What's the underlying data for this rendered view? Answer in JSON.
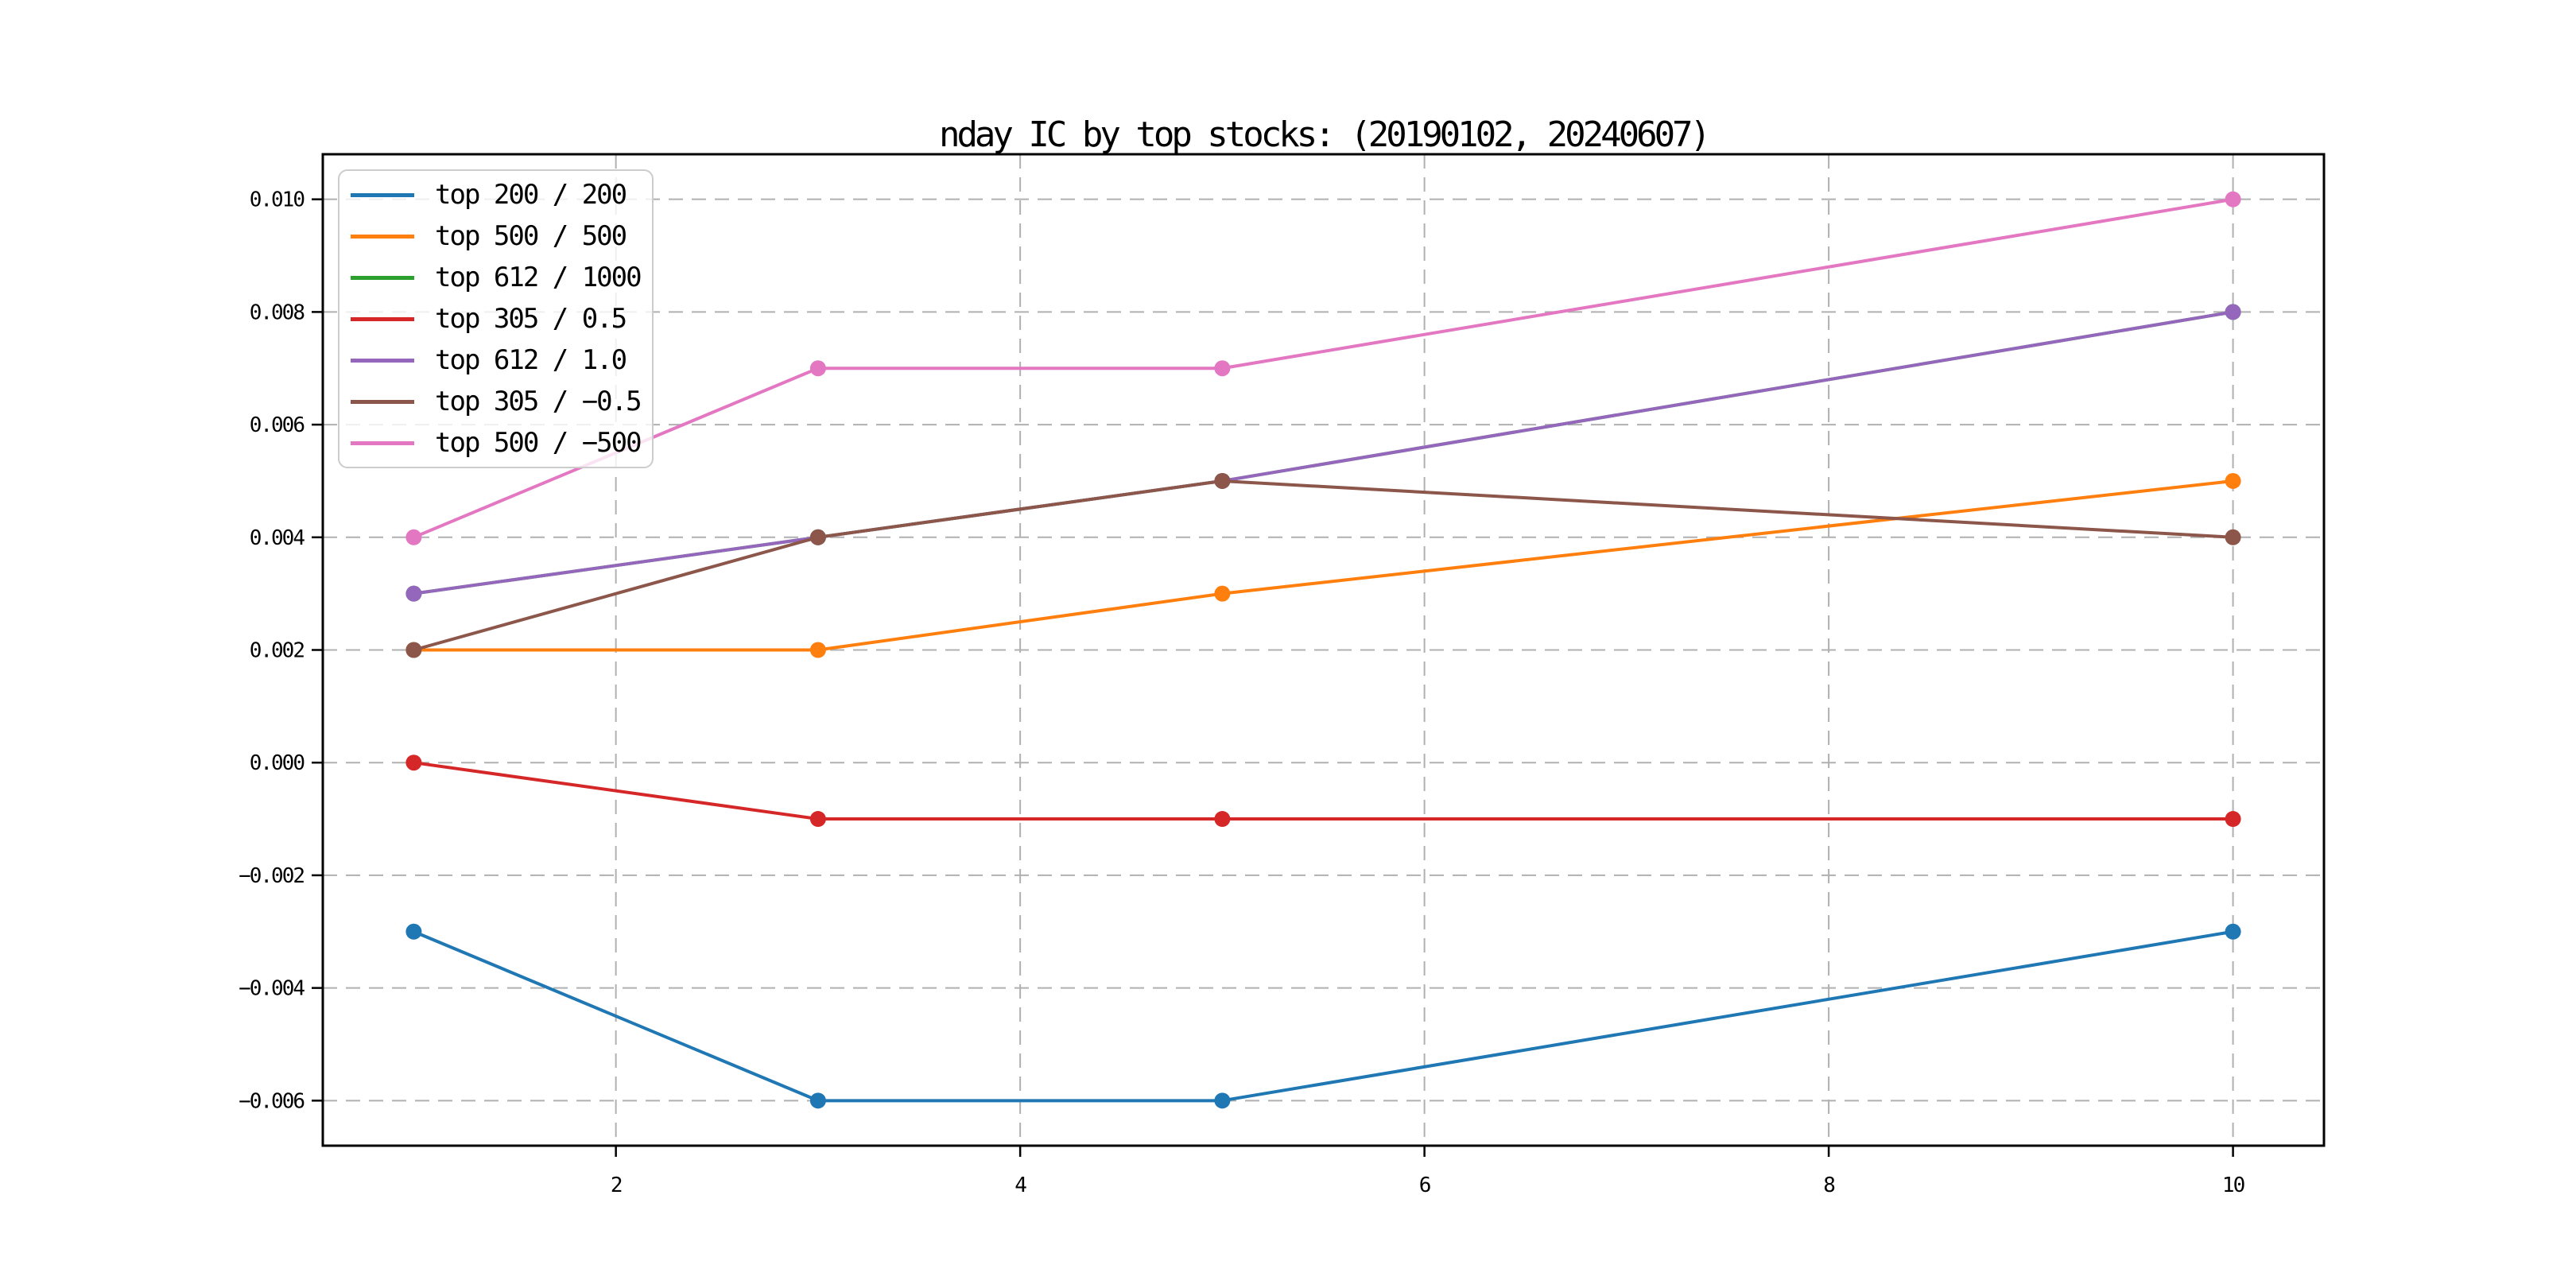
{
  "chart_data": {
    "type": "line",
    "title": "nday IC by top stocks: (20190102, 20240607)",
    "x": [
      1,
      3,
      5,
      10
    ],
    "series": [
      {
        "name": "top 200 / 200",
        "color": "#1f77b4",
        "values": [
          -0.003,
          -0.006,
          -0.006,
          -0.003
        ]
      },
      {
        "name": "top 500 / 500",
        "color": "#ff7f0e",
        "values": [
          0.002,
          0.002,
          0.003,
          0.005
        ]
      },
      {
        "name": "top 612 / 1000",
        "color": "#2ca02c",
        "values": [
          0.003,
          0.004,
          0.005,
          0.008
        ]
      },
      {
        "name": "top 305 / 0.5",
        "color": "#d62728",
        "values": [
          0.0,
          -0.001,
          -0.001,
          -0.001
        ]
      },
      {
        "name": "top 612 / 1.0",
        "color": "#9467bd",
        "values": [
          0.003,
          0.004,
          0.005,
          0.008
        ]
      },
      {
        "name": "top 305 / −0.5",
        "color": "#8c564b",
        "values": [
          0.002,
          0.004,
          0.005,
          0.004
        ]
      },
      {
        "name": "top 500 / −500",
        "color": "#e377c2",
        "values": [
          0.004,
          0.007,
          0.007,
          0.01
        ]
      }
    ],
    "xlabel": "",
    "ylabel": "",
    "xlim": [
      0.55,
      10.45
    ],
    "ylim": [
      -0.0068,
      0.0108
    ],
    "xticks": [
      2,
      4,
      6,
      8,
      10
    ],
    "xtick_labels": [
      "2",
      "4",
      "6",
      "8",
      "10"
    ],
    "yticks": [
      0.01,
      0.008,
      0.006,
      0.004,
      0.002,
      0.0,
      -0.002,
      -0.004,
      -0.006
    ],
    "ytick_labels": [
      "0.010",
      "0.008",
      "0.006",
      "0.004",
      "0.002",
      "0.000",
      "−0.002",
      "−0.004",
      "−0.006"
    ],
    "grid": true,
    "legend_position": "upper left",
    "marker": "o"
  },
  "styles": {
    "background": "#ffffff",
    "grid_color": "#b0b0b0",
    "axis_color": "#000000",
    "legend_border_color": "#cccccc",
    "line_width": 4,
    "marker_radius": 10
  }
}
